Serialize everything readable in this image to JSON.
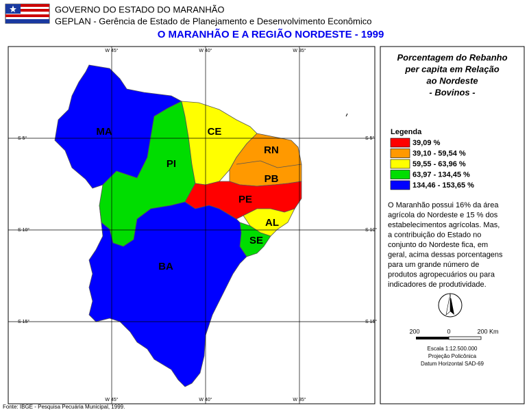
{
  "header": {
    "line1": "GOVERNO DO ESTADO DO MARANHÃO",
    "line2": "GEPLAN - Gerência de Estado de Planejamento e Desenvolvimento Econômico",
    "title": "O MARANHÃO E A REGIÃO NORDESTE - 1999"
  },
  "map": {
    "lon_labels": [
      "W 45°",
      "W 40°",
      "W 35°"
    ],
    "lat_labels": [
      "S 5°",
      "S 10°",
      "S 15°"
    ],
    "states": [
      "MA",
      "PI",
      "CE",
      "RN",
      "PB",
      "PE",
      "AL",
      "SE",
      "BA"
    ]
  },
  "panel": {
    "title": [
      "Porcentagem do Rebanho",
      "per capita em Relação",
      "ao Nordeste",
      "- Bovinos -"
    ],
    "legend_title": "Legenda",
    "legend": [
      {
        "label": "39,09 %",
        "color": "#ff0000"
      },
      {
        "label": "39,10 - 59,54 %",
        "color": "#ff9900"
      },
      {
        "label": "59,55 - 63,96 %",
        "color": "#ffff00"
      },
      {
        "label": "63,97 - 134,45 %",
        "color": "#00dd00"
      },
      {
        "label": "134,46 - 153,65 %",
        "color": "#0000ff"
      }
    ],
    "text": [
      "O Maranhão possui 16% da área",
      "agrícola do Nordeste e 15 % dos",
      "estabelecimentos agrícolas. Mas,",
      "a contribuição do Estado no",
      "conjunto do Nordeste fica, em",
      "geral, acima dessas porcentagens",
      "para um grande número de",
      "produtos agropecuários ou para",
      "indicadores de produtividade."
    ],
    "compass": "N",
    "scale": [
      "200",
      "0",
      "200 Km"
    ],
    "notes": [
      "Escala 1:12.500.000",
      "Projeção Policônica",
      "Datum Horizontal SAD-69"
    ]
  },
  "footer": "Fonte: IBGE - Pesquisa Pecuária Municipal, 1999."
}
